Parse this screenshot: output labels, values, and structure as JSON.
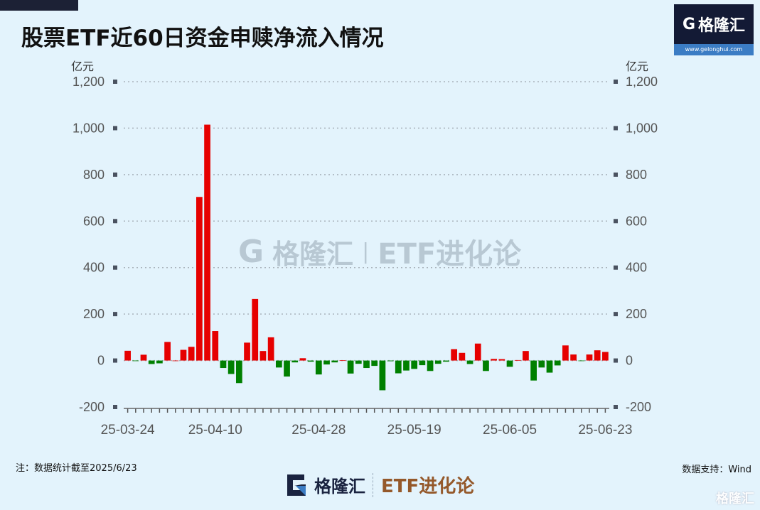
{
  "title": "股票ETF近60日资金申赎净流入情况",
  "logo": {
    "brand": "格隆汇",
    "url": "www.gelonghui.com"
  },
  "footer": {
    "note": "注：数据统计截至2025/6/23",
    "source": "数据支持：Wind",
    "brand": "格隆汇",
    "column": "ETF进化论",
    "corner_brand": "格隆汇"
  },
  "watermark": {
    "brand": "格隆汇",
    "url": "www.gelonghui.com",
    "column": "ETF进化论"
  },
  "chart_data": {
    "type": "bar",
    "title": "股票ETF近60日资金申赎净流入情况",
    "ylabel_left": "亿元",
    "ylabel_right": "亿元",
    "ylim": [
      -200,
      1200
    ],
    "yticks": [
      -200,
      0,
      200,
      400,
      600,
      800,
      1000,
      1200
    ],
    "ytick_labels": [
      "-200",
      "0",
      "200",
      "400",
      "600",
      "800",
      "1,000",
      "1,200"
    ],
    "grid": true,
    "positive_color": "#e60000",
    "negative_color": "#008000",
    "x_tick_labels": [
      {
        "index": 0,
        "label": "25-03-24"
      },
      {
        "index": 11,
        "label": "25-04-10"
      },
      {
        "index": 24,
        "label": "25-04-28"
      },
      {
        "index": 36,
        "label": "25-05-19"
      },
      {
        "index": 48,
        "label": "25-06-05"
      },
      {
        "index": 60,
        "label": "25-06-23"
      }
    ],
    "values": [
      42,
      -2,
      25,
      -15,
      -12,
      80,
      0,
      46,
      59,
      704,
      1015,
      127,
      -32,
      -58,
      -97,
      77,
      265,
      41,
      100,
      -30,
      -69,
      -8,
      10,
      -5,
      -60,
      -17,
      -8,
      1,
      -56,
      -14,
      -32,
      -23,
      -128,
      -3,
      -55,
      -43,
      -36,
      -20,
      -45,
      -14,
      -5,
      49,
      33,
      -15,
      73,
      -45,
      7,
      6,
      -27,
      2,
      41,
      -86,
      -30,
      -52,
      -21,
      65,
      26,
      -1,
      26,
      44,
      37
    ]
  }
}
